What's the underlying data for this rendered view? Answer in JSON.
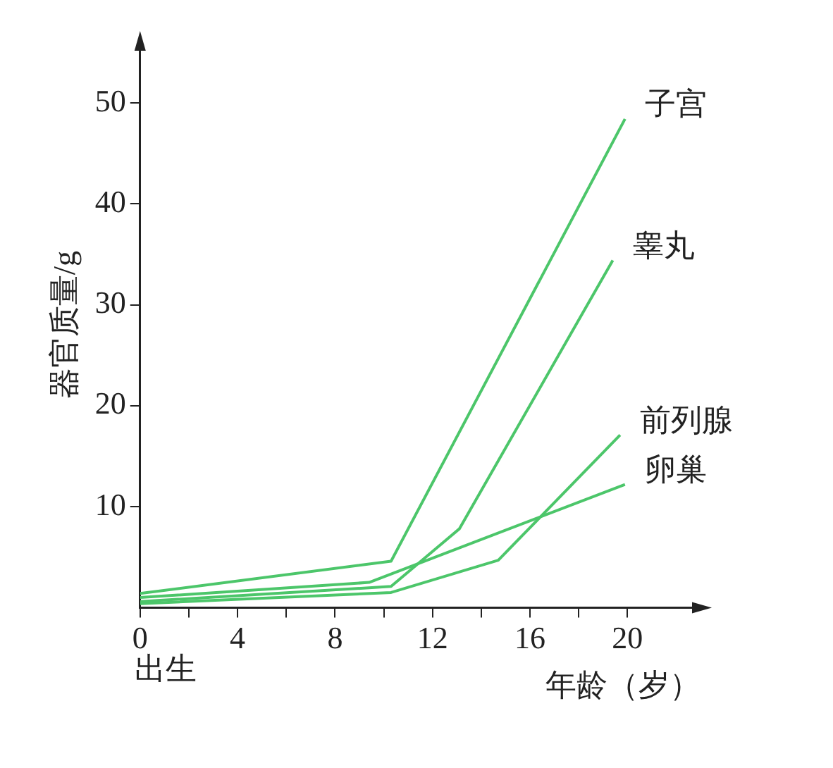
{
  "chart_data": {
    "type": "line",
    "xlabel": "年龄（岁）",
    "ylabel": "器官质量/g",
    "annotations": [
      "出生"
    ],
    "xlim": [
      0,
      23
    ],
    "ylim": [
      0,
      56
    ],
    "xticks": [
      0,
      {
        "value": 2,
        "label": null
      },
      4,
      {
        "value": 6,
        "label": null
      },
      8,
      {
        "value": 10,
        "label": null
      },
      12,
      {
        "value": 14,
        "label": null
      },
      16,
      {
        "value": 18,
        "label": null
      },
      20
    ],
    "yticks": [
      10,
      20,
      30,
      40,
      50
    ],
    "grid": false,
    "legend": false,
    "marker": "none",
    "line_style": "solid",
    "series": [
      {
        "name": "子宫",
        "color": "#4cc66a",
        "x": [
          0,
          10.3,
          19.9
        ],
        "values": [
          1.4,
          4.6,
          48.4
        ]
      },
      {
        "name": "睾丸",
        "color": "#4cc66a",
        "x": [
          0,
          10.3,
          13.1,
          19.4
        ],
        "values": [
          0.6,
          2.1,
          7.8,
          34.4
        ]
      },
      {
        "name": "前列腺",
        "color": "#4cc66a",
        "x": [
          0,
          10.3,
          14.7,
          19.7
        ],
        "values": [
          0.4,
          1.5,
          4.7,
          17.1
        ]
      },
      {
        "name": "卵巢",
        "color": "#4cc66a",
        "x": [
          0,
          9.4,
          19.9
        ],
        "values": [
          1.0,
          2.5,
          12.2
        ]
      }
    ]
  }
}
